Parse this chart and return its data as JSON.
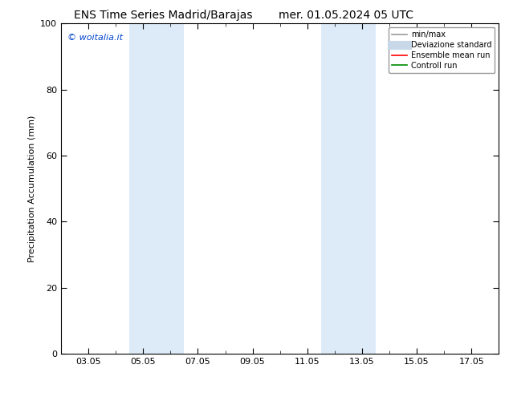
{
  "title_left": "ENS Time Series Madrid/Barajas",
  "title_right": "mer. 01.05.2024 05 UTC",
  "ylabel": "Precipitation Accumulation (mm)",
  "ylim": [
    0,
    100
  ],
  "yticks": [
    0,
    20,
    40,
    60,
    80,
    100
  ],
  "xtick_labels": [
    "03.05",
    "05.05",
    "07.05",
    "09.05",
    "11.05",
    "13.05",
    "15.05",
    "17.05"
  ],
  "xtick_positions": [
    2,
    4,
    6,
    8,
    10,
    12,
    14,
    16
  ],
  "xlim": [
    1,
    17
  ],
  "shaded_bands": [
    {
      "xmin": 3.5,
      "xmax": 5.5
    },
    {
      "xmin": 10.5,
      "xmax": 12.5
    }
  ],
  "shaded_color": "#ddeaf7",
  "watermark_text": "© woitalia.it",
  "watermark_color": "#0044cc",
  "legend_items": [
    {
      "label": "min/max",
      "color": "#999999",
      "lw": 1.2
    },
    {
      "label": "Deviazione standard",
      "color": "#c8d8e8",
      "lw": 8
    },
    {
      "label": "Ensemble mean run",
      "color": "#ff0000",
      "lw": 1.2
    },
    {
      "label": "Controll run",
      "color": "#008800",
      "lw": 1.2
    }
  ],
  "bg_color": "#ffffff",
  "spine_color": "#000000",
  "title_fontsize": 10,
  "axis_label_fontsize": 8,
  "tick_fontsize": 8,
  "watermark_fontsize": 8,
  "legend_fontsize": 7
}
